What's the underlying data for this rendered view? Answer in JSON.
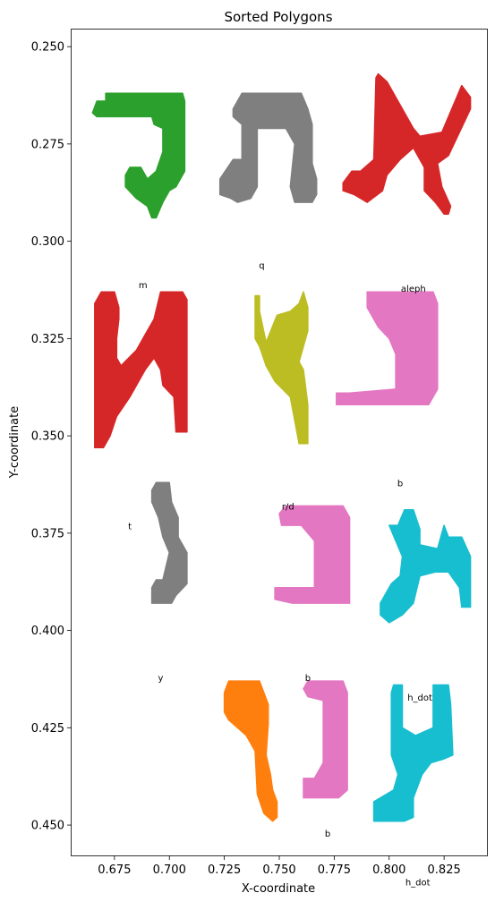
{
  "chart_data": {
    "type": "scatter",
    "title": "Sorted Polygons",
    "xlabel": "X-coordinate",
    "ylabel": "Y-coordinate",
    "xlim": [
      0.6555,
      0.8445
    ],
    "ylim": [
      0.4578,
      0.2456
    ],
    "y_inverted": true,
    "grid": false,
    "x_ticks": [
      {
        "value": 0.675,
        "label": "0.675"
      },
      {
        "value": 0.7,
        "label": "0.700"
      },
      {
        "value": 0.725,
        "label": "0.725"
      },
      {
        "value": 0.75,
        "label": "0.750"
      },
      {
        "value": 0.775,
        "label": "0.775"
      },
      {
        "value": 0.8,
        "label": "0.800"
      },
      {
        "value": 0.825,
        "label": "0.825"
      }
    ],
    "y_ticks": [
      {
        "value": 0.25,
        "label": "0.250"
      },
      {
        "value": 0.275,
        "label": "0.275"
      },
      {
        "value": 0.3,
        "label": "0.300"
      },
      {
        "value": 0.325,
        "label": "0.325"
      },
      {
        "value": 0.35,
        "label": "0.350"
      },
      {
        "value": 0.375,
        "label": "0.375"
      },
      {
        "value": 0.4,
        "label": "0.400"
      },
      {
        "value": 0.425,
        "label": "0.425"
      },
      {
        "value": 0.45,
        "label": "0.450"
      }
    ],
    "polygons": [
      {
        "color": "#2ca02c",
        "points": [
          [
            0.665,
            0.267
          ],
          [
            0.667,
            0.264
          ],
          [
            0.671,
            0.264
          ],
          [
            0.671,
            0.262
          ],
          [
            0.706,
            0.262
          ],
          [
            0.707,
            0.264
          ],
          [
            0.707,
            0.282
          ],
          [
            0.703,
            0.286
          ],
          [
            0.7,
            0.287
          ],
          [
            0.697,
            0.29
          ],
          [
            0.694,
            0.294
          ],
          [
            0.692,
            0.294
          ],
          [
            0.69,
            0.291
          ],
          [
            0.685,
            0.289
          ],
          [
            0.68,
            0.286
          ],
          [
            0.68,
            0.283
          ],
          [
            0.682,
            0.281
          ],
          [
            0.687,
            0.281
          ],
          [
            0.69,
            0.284
          ],
          [
            0.694,
            0.282
          ],
          [
            0.697,
            0.277
          ],
          [
            0.697,
            0.271
          ],
          [
            0.693,
            0.27
          ],
          [
            0.692,
            0.268
          ],
          [
            0.667,
            0.268
          ]
        ]
      },
      {
        "color": "#7f7f7f",
        "points": [
          [
            0.723,
            0.284
          ],
          [
            0.729,
            0.279
          ],
          [
            0.733,
            0.279
          ],
          [
            0.733,
            0.27
          ],
          [
            0.729,
            0.268
          ],
          [
            0.729,
            0.266
          ],
          [
            0.733,
            0.262
          ],
          [
            0.76,
            0.262
          ],
          [
            0.763,
            0.266
          ],
          [
            0.765,
            0.27
          ],
          [
            0.765,
            0.28
          ],
          [
            0.767,
            0.284
          ],
          [
            0.767,
            0.288
          ],
          [
            0.765,
            0.29
          ],
          [
            0.757,
            0.29
          ],
          [
            0.755,
            0.286
          ],
          [
            0.757,
            0.275
          ],
          [
            0.753,
            0.271
          ],
          [
            0.74,
            0.271
          ],
          [
            0.74,
            0.286
          ],
          [
            0.737,
            0.289
          ],
          [
            0.731,
            0.29
          ],
          [
            0.728,
            0.289
          ],
          [
            0.723,
            0.288
          ]
        ]
      },
      {
        "color": "#d62728",
        "points": [
          [
            0.779,
            0.285
          ],
          [
            0.783,
            0.282
          ],
          [
            0.787,
            0.282
          ],
          [
            0.793,
            0.279
          ],
          [
            0.794,
            0.258
          ],
          [
            0.795,
            0.257
          ],
          [
            0.799,
            0.259
          ],
          [
            0.811,
            0.271
          ],
          [
            0.814,
            0.273
          ],
          [
            0.824,
            0.272
          ],
          [
            0.833,
            0.26
          ],
          [
            0.837,
            0.263
          ],
          [
            0.837,
            0.266
          ],
          [
            0.832,
            0.272
          ],
          [
            0.827,
            0.278
          ],
          [
            0.822,
            0.28
          ],
          [
            0.824,
            0.286
          ],
          [
            0.828,
            0.291
          ],
          [
            0.827,
            0.293
          ],
          [
            0.825,
            0.293
          ],
          [
            0.821,
            0.29
          ],
          [
            0.816,
            0.287
          ],
          [
            0.816,
            0.281
          ],
          [
            0.811,
            0.276
          ],
          [
            0.805,
            0.279
          ],
          [
            0.799,
            0.283
          ],
          [
            0.797,
            0.287
          ],
          [
            0.79,
            0.29
          ],
          [
            0.784,
            0.288
          ],
          [
            0.779,
            0.287
          ]
        ]
      },
      {
        "color": "#d62728",
        "points": [
          [
            0.666,
            0.316
          ],
          [
            0.669,
            0.313
          ],
          [
            0.675,
            0.313
          ],
          [
            0.677,
            0.317
          ],
          [
            0.677,
            0.32
          ],
          [
            0.676,
            0.325
          ],
          [
            0.676,
            0.33
          ],
          [
            0.678,
            0.332
          ],
          [
            0.685,
            0.328
          ],
          [
            0.689,
            0.324
          ],
          [
            0.693,
            0.32
          ],
          [
            0.696,
            0.313
          ],
          [
            0.706,
            0.313
          ],
          [
            0.708,
            0.315
          ],
          [
            0.708,
            0.349
          ],
          [
            0.703,
            0.349
          ],
          [
            0.702,
            0.34
          ],
          [
            0.697,
            0.337
          ],
          [
            0.696,
            0.333
          ],
          [
            0.693,
            0.33
          ],
          [
            0.689,
            0.333
          ],
          [
            0.685,
            0.337
          ],
          [
            0.682,
            0.34
          ],
          [
            0.676,
            0.345
          ],
          [
            0.673,
            0.35
          ],
          [
            0.67,
            0.353
          ],
          [
            0.666,
            0.353
          ]
        ]
      },
      {
        "color": "#bcbd22",
        "points": [
          [
            0.739,
            0.314
          ],
          [
            0.741,
            0.314
          ],
          [
            0.741,
            0.318
          ],
          [
            0.744,
            0.326
          ],
          [
            0.749,
            0.319
          ],
          [
            0.755,
            0.318
          ],
          [
            0.759,
            0.316
          ],
          [
            0.761,
            0.313
          ],
          [
            0.763,
            0.317
          ],
          [
            0.763,
            0.323
          ],
          [
            0.759,
            0.331
          ],
          [
            0.761,
            0.333
          ],
          [
            0.763,
            0.342
          ],
          [
            0.763,
            0.352
          ],
          [
            0.759,
            0.352
          ],
          [
            0.757,
            0.346
          ],
          [
            0.755,
            0.34
          ],
          [
            0.748,
            0.336
          ],
          [
            0.744,
            0.332
          ],
          [
            0.741,
            0.327
          ],
          [
            0.739,
            0.325
          ]
        ]
      },
      {
        "color": "#e377c2",
        "points": [
          [
            0.79,
            0.313
          ],
          [
            0.82,
            0.313
          ],
          [
            0.822,
            0.316
          ],
          [
            0.822,
            0.338
          ],
          [
            0.818,
            0.342
          ],
          [
            0.776,
            0.342
          ],
          [
            0.776,
            0.339
          ],
          [
            0.782,
            0.339
          ],
          [
            0.803,
            0.338
          ],
          [
            0.803,
            0.329
          ],
          [
            0.8,
            0.325
          ],
          [
            0.795,
            0.322
          ],
          [
            0.79,
            0.317
          ]
        ]
      },
      {
        "color": "#7f7f7f",
        "points": [
          [
            0.692,
            0.364
          ],
          [
            0.694,
            0.362
          ],
          [
            0.7,
            0.362
          ],
          [
            0.701,
            0.367
          ],
          [
            0.704,
            0.371
          ],
          [
            0.704,
            0.376
          ],
          [
            0.708,
            0.38
          ],
          [
            0.708,
            0.388
          ],
          [
            0.703,
            0.391
          ],
          [
            0.701,
            0.393
          ],
          [
            0.692,
            0.393
          ],
          [
            0.692,
            0.389
          ],
          [
            0.694,
            0.387
          ],
          [
            0.697,
            0.387
          ],
          [
            0.7,
            0.38
          ],
          [
            0.697,
            0.376
          ],
          [
            0.695,
            0.371
          ],
          [
            0.692,
            0.367
          ]
        ]
      },
      {
        "color": "#e377c2",
        "points": [
          [
            0.75,
            0.37
          ],
          [
            0.753,
            0.368
          ],
          [
            0.779,
            0.368
          ],
          [
            0.782,
            0.371
          ],
          [
            0.782,
            0.393
          ],
          [
            0.756,
            0.393
          ],
          [
            0.748,
            0.392
          ],
          [
            0.748,
            0.389
          ],
          [
            0.754,
            0.389
          ],
          [
            0.766,
            0.389
          ],
          [
            0.766,
            0.384
          ],
          [
            0.766,
            0.377
          ],
          [
            0.763,
            0.375
          ],
          [
            0.76,
            0.373
          ],
          [
            0.751,
            0.373
          ]
        ]
      },
      {
        "color": "#17becf",
        "points": [
          [
            0.8,
            0.373
          ],
          [
            0.804,
            0.373
          ],
          [
            0.807,
            0.369
          ],
          [
            0.811,
            0.369
          ],
          [
            0.814,
            0.374
          ],
          [
            0.814,
            0.378
          ],
          [
            0.822,
            0.379
          ],
          [
            0.825,
            0.373
          ],
          [
            0.827,
            0.376
          ],
          [
            0.833,
            0.376
          ],
          [
            0.837,
            0.381
          ],
          [
            0.837,
            0.394
          ],
          [
            0.833,
            0.394
          ],
          [
            0.832,
            0.389
          ],
          [
            0.827,
            0.385
          ],
          [
            0.821,
            0.385
          ],
          [
            0.814,
            0.386
          ],
          [
            0.811,
            0.393
          ],
          [
            0.806,
            0.396
          ],
          [
            0.8,
            0.398
          ],
          [
            0.796,
            0.396
          ],
          [
            0.796,
            0.393
          ],
          [
            0.801,
            0.388
          ],
          [
            0.805,
            0.386
          ],
          [
            0.806,
            0.381
          ],
          [
            0.803,
            0.377
          ]
        ]
      },
      {
        "color": "#ff7f0e",
        "points": [
          [
            0.725,
            0.416
          ],
          [
            0.727,
            0.413
          ],
          [
            0.741,
            0.413
          ],
          [
            0.745,
            0.419
          ],
          [
            0.745,
            0.424
          ],
          [
            0.744,
            0.432
          ],
          [
            0.746,
            0.437
          ],
          [
            0.747,
            0.441
          ],
          [
            0.749,
            0.444
          ],
          [
            0.749,
            0.448
          ],
          [
            0.747,
            0.449
          ],
          [
            0.743,
            0.447
          ],
          [
            0.74,
            0.442
          ],
          [
            0.739,
            0.431
          ],
          [
            0.735,
            0.427
          ],
          [
            0.727,
            0.423
          ],
          [
            0.725,
            0.421
          ]
        ]
      },
      {
        "color": "#e377c2",
        "points": [
          [
            0.761,
            0.415
          ],
          [
            0.763,
            0.413
          ],
          [
            0.779,
            0.413
          ],
          [
            0.781,
            0.416
          ],
          [
            0.781,
            0.441
          ],
          [
            0.777,
            0.443
          ],
          [
            0.761,
            0.443
          ],
          [
            0.761,
            0.438
          ],
          [
            0.766,
            0.438
          ],
          [
            0.77,
            0.434
          ],
          [
            0.77,
            0.418
          ],
          [
            0.763,
            0.417
          ]
        ]
      },
      {
        "color": "#17becf",
        "points": [
          [
            0.801,
            0.416
          ],
          [
            0.802,
            0.414
          ],
          [
            0.806,
            0.414
          ],
          [
            0.806,
            0.425
          ],
          [
            0.812,
            0.427
          ],
          [
            0.82,
            0.425
          ],
          [
            0.82,
            0.414
          ],
          [
            0.827,
            0.414
          ],
          [
            0.828,
            0.419
          ],
          [
            0.829,
            0.432
          ],
          [
            0.825,
            0.433
          ],
          [
            0.819,
            0.434
          ],
          [
            0.815,
            0.437
          ],
          [
            0.811,
            0.443
          ],
          [
            0.811,
            0.448
          ],
          [
            0.807,
            0.449
          ],
          [
            0.793,
            0.449
          ],
          [
            0.793,
            0.444
          ],
          [
            0.802,
            0.441
          ],
          [
            0.804,
            0.437
          ],
          [
            0.801,
            0.432
          ]
        ]
      }
    ],
    "annotations": [
      {
        "text": "m",
        "x": 0.688,
        "y": 0.312
      },
      {
        "text": "q",
        "x": 0.742,
        "y": 0.307
      },
      {
        "text": "aleph",
        "x": 0.811,
        "y": 0.313
      },
      {
        "text": "t",
        "x": 0.682,
        "y": 0.374
      },
      {
        "text": "r/d",
        "x": 0.754,
        "y": 0.369
      },
      {
        "text": "b",
        "x": 0.805,
        "y": 0.363
      },
      {
        "text": "y",
        "x": 0.696,
        "y": 0.413
      },
      {
        "text": "b",
        "x": 0.763,
        "y": 0.413
      },
      {
        "text": "h_dot",
        "x": 0.814,
        "y": 0.418
      },
      {
        "text": "b",
        "x": 0.772,
        "y": 0.453
      },
      {
        "text": "h_dot",
        "x": 0.813,
        "y": 0.4655
      }
    ]
  }
}
